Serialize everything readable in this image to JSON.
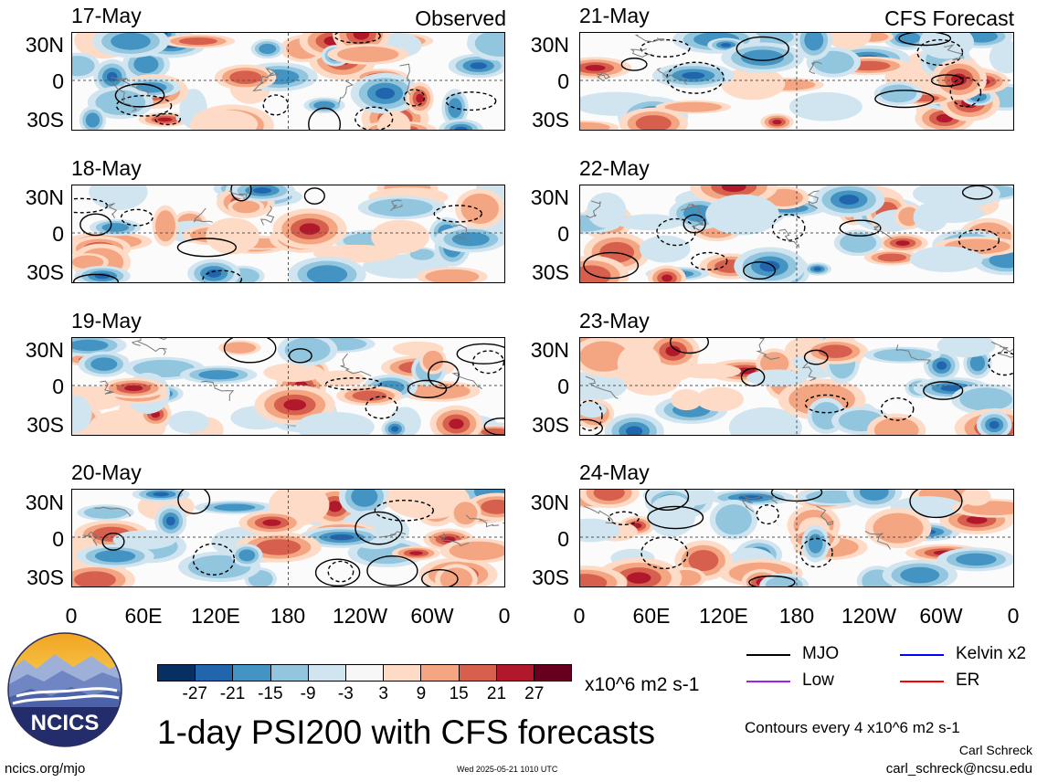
{
  "observed_label": "Observed",
  "forecast_label": "CFS Forecast",
  "lat_ticks": [
    "30N",
    "0",
    "30S"
  ],
  "lon_ticks": [
    "0",
    "60E",
    "120E",
    "180",
    "120W",
    "60W",
    "0"
  ],
  "panels": [
    {
      "date": "17-May",
      "source": "observed"
    },
    {
      "date": "18-May",
      "source": "observed"
    },
    {
      "date": "19-May",
      "source": "observed"
    },
    {
      "date": "20-May",
      "source": "observed"
    },
    {
      "date": "21-May",
      "source": "forecast"
    },
    {
      "date": "22-May",
      "source": "forecast"
    },
    {
      "date": "23-May",
      "source": "forecast"
    },
    {
      "date": "24-May",
      "source": "forecast"
    }
  ],
  "colorbar": {
    "labels": [
      "-27",
      "-21",
      "-15",
      "-9",
      "-3",
      "3",
      "9",
      "15",
      "21",
      "27"
    ],
    "colors": [
      "#053061",
      "#2166ac",
      "#4393c3",
      "#92c5de",
      "#d1e5f0",
      "#f7f7f7",
      "#fddbc7",
      "#f4a582",
      "#d6604d",
      "#b2182b",
      "#67001f"
    ],
    "units": "x10^6 m2 s-1"
  },
  "legend": [
    {
      "label": "MJO",
      "color": "#000000"
    },
    {
      "label": "Kelvin x2",
      "color": "#0000ff"
    },
    {
      "label": "Low",
      "color": "#a020f0"
    },
    {
      "label": "ER",
      "color": "#ff0000"
    }
  ],
  "title": "1-day PSI200 with CFS forecasts",
  "contour_note": "Contours every 4 x10^6 m2 s-1",
  "author": "Carl Schreck",
  "email": "carl_schreck@ncsu.edu",
  "website": "ncics.org/mjo",
  "timestamp": "Wed 2025-05-21 1010 UTC",
  "logo_text": "NCICS"
}
